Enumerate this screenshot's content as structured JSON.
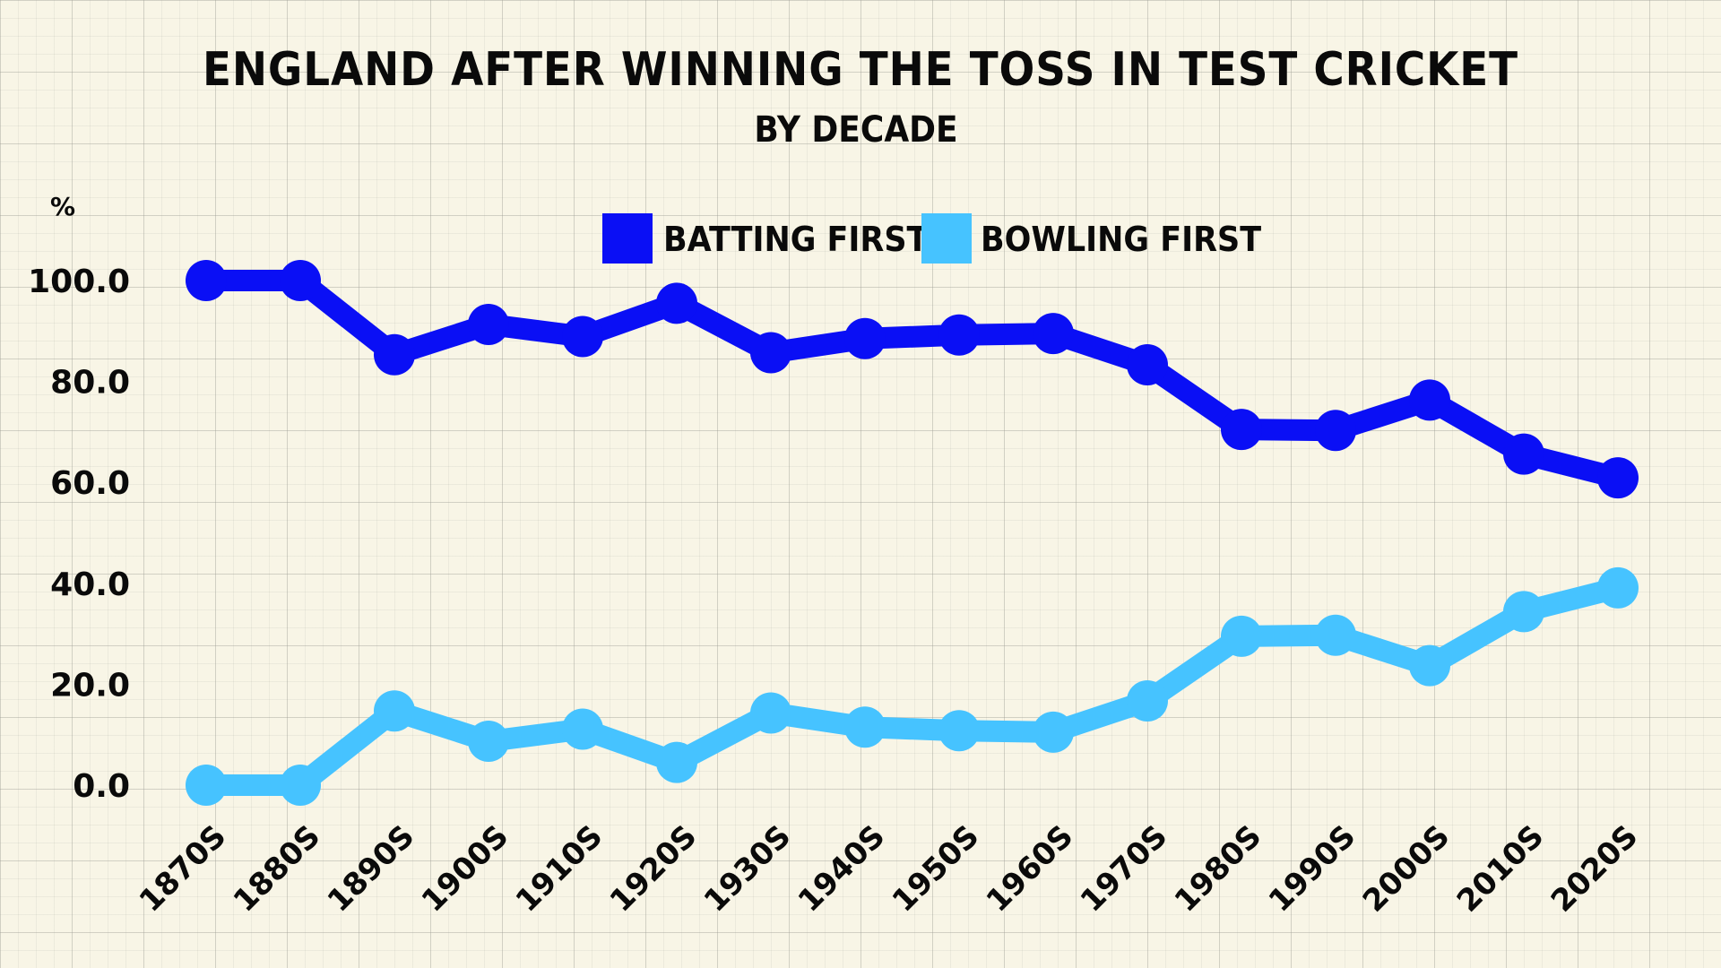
{
  "chart_data": {
    "type": "line",
    "title": "ENGLAND AFTER WINNING THE TOSS IN TEST CRICKET",
    "subtitle": "BY DECADE",
    "ylabel": "%",
    "xlabel": "",
    "ylim": [
      0,
      100
    ],
    "yticks": [
      "0.0",
      "20.0",
      "40.0",
      "60.0",
      "80.0",
      "100.0"
    ],
    "categories": [
      "1870S",
      "1880S",
      "1890S",
      "1900S",
      "1910S",
      "1920S",
      "1930S",
      "1940S",
      "1950S",
      "1960S",
      "1970S",
      "1980S",
      "1990S",
      "2000S",
      "2010S",
      "2020S"
    ],
    "series": [
      {
        "name": "BATTING FIRST",
        "color": "#0a0ff5",
        "values": [
          100,
          100,
          85.3,
          91.3,
          88.9,
          95.5,
          85.7,
          88.5,
          89.2,
          89.5,
          83.3,
          70.5,
          70.3,
          76.3,
          65.6,
          60.9
        ]
      },
      {
        "name": "BOWLING FIRST",
        "color": "#46c3ff",
        "values": [
          0,
          0,
          14.7,
          8.7,
          11.1,
          4.5,
          14.3,
          11.5,
          10.8,
          10.5,
          16.7,
          29.5,
          29.7,
          23.7,
          34.4,
          39.1
        ]
      }
    ],
    "legend": "top-center",
    "grid": true
  }
}
